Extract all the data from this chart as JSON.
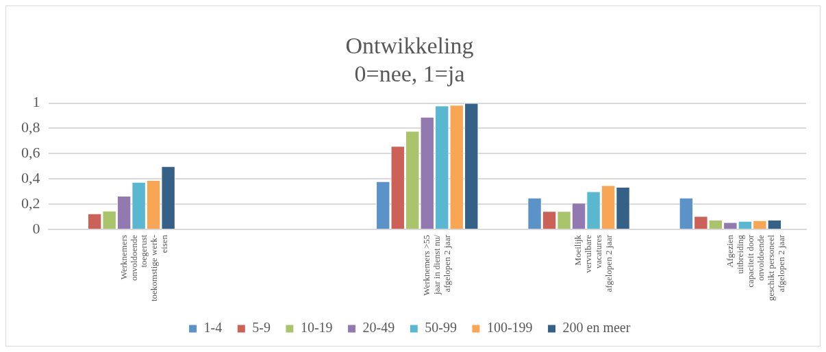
{
  "chart_data": {
    "type": "bar",
    "title": "Ontwikkeling",
    "subtitle": "0=nee, 1=ja",
    "categories": [
      "Werknemers\nonvoldoende\ntoegerust\ntoekomstige werk-\neisen",
      null,
      "Werknemers >55\njaar in dienst nu/\nafgelopen 2 jaar",
      "Moeilijk\nvervulbare\nvacatures\nafgelopen 2 jaar",
      "Afgezien\nuitbreiding\ncapaciteit door\nonvoldoende\ngeschikt personeel\nafgelopen 2 jaar"
    ],
    "series": [
      {
        "name": "1-4",
        "color": "#5b93c8",
        "values": [
          null,
          null,
          0.38,
          0.25,
          0.25
        ]
      },
      {
        "name": "5-9",
        "color": "#cc6158",
        "values": [
          0.125,
          null,
          0.66,
          0.145,
          0.105
        ]
      },
      {
        "name": "10-19",
        "color": "#a9c46a",
        "values": [
          0.147,
          null,
          0.78,
          0.145,
          0.076
        ]
      },
      {
        "name": "20-49",
        "color": "#9279b0",
        "values": [
          0.265,
          null,
          0.89,
          0.21,
          0.057
        ]
      },
      {
        "name": "50-99",
        "color": "#59b8d0",
        "values": [
          0.375,
          null,
          0.98,
          0.3,
          0.066
        ]
      },
      {
        "name": "100-199",
        "color": "#f9a654",
        "values": [
          0.39,
          null,
          0.985,
          0.35,
          0.071
        ]
      },
      {
        "name": "200 en meer",
        "color": "#356186",
        "values": [
          0.5,
          null,
          1.0,
          0.336,
          0.076
        ]
      }
    ],
    "ylim": [
      0,
      1
    ],
    "yticks": [
      0,
      {
        "value": 0.2,
        "label": "0,2"
      },
      {
        "value": 0.4,
        "label": "0,4"
      },
      {
        "value": 0.6,
        "label": "0,6"
      },
      {
        "value": 0.8,
        "label": "0,8"
      },
      1
    ],
    "grid": "y",
    "legend": "bottom"
  }
}
